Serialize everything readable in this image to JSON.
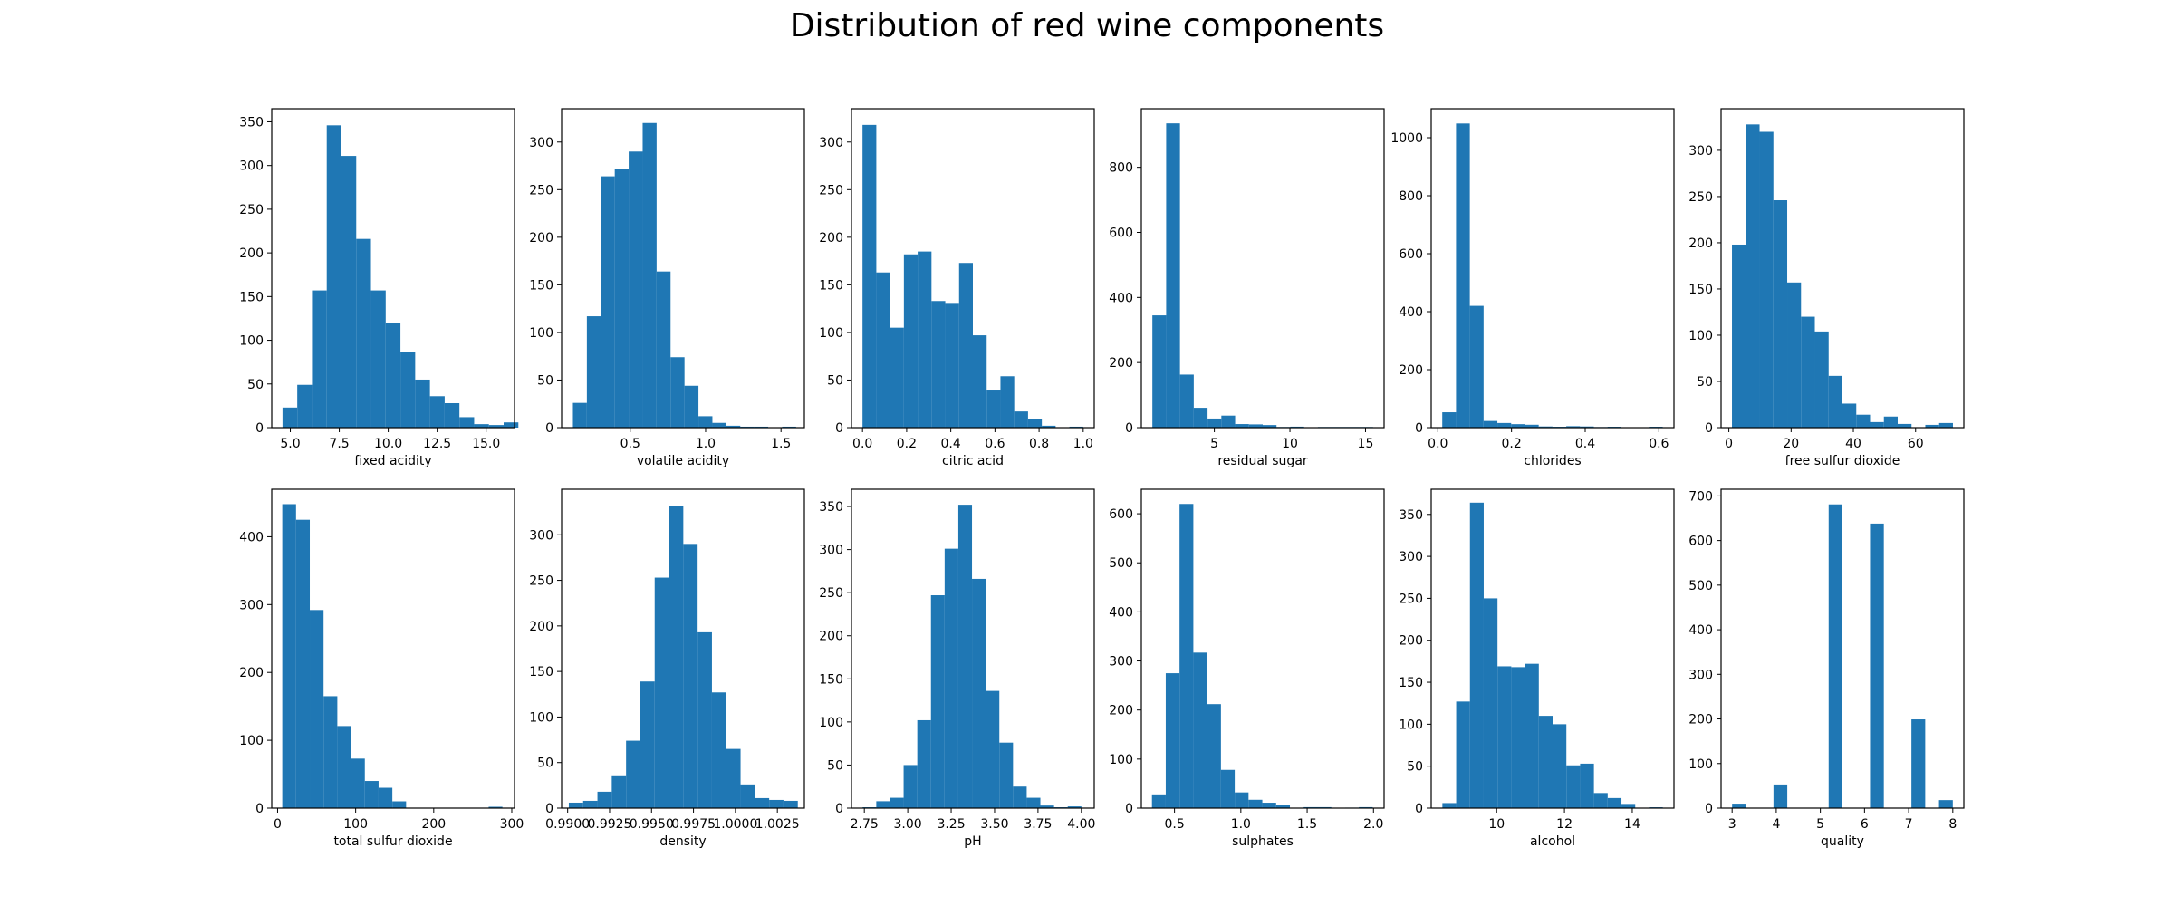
{
  "title": "Distribution of red wine components",
  "colors": {
    "bar": "#1f77b4",
    "axis": "#000000"
  },
  "chart_data": [
    {
      "type": "bar",
      "xlabel": "fixed acidity",
      "xlim": [
        4.05,
        16.45
      ],
      "ylim": [
        0,
        365
      ],
      "xticks": [
        {
          "v": 5,
          "t": "5.0"
        },
        {
          "v": 7.5,
          "t": "7.5"
        },
        {
          "v": 10,
          "t": "10.0"
        },
        {
          "v": 12.5,
          "t": "12.5"
        },
        {
          "v": 15,
          "t": "15.0"
        }
      ],
      "yticks": [
        {
          "v": 0,
          "t": "0"
        },
        {
          "v": 50,
          "t": "50"
        },
        {
          "v": 100,
          "t": "100"
        },
        {
          "v": 150,
          "t": "150"
        },
        {
          "v": 200,
          "t": "200"
        },
        {
          "v": 250,
          "t": "250"
        },
        {
          "v": 300,
          "t": "300"
        },
        {
          "v": 350,
          "t": "350"
        }
      ],
      "bin_start": 4.6,
      "bin_width": 0.753,
      "values": [
        23,
        49,
        157,
        346,
        311,
        216,
        157,
        120,
        87,
        55,
        36,
        28,
        12,
        4,
        3,
        6
      ]
    },
    {
      "type": "bar",
      "xlabel": "volatile acidity",
      "xlim": [
        0.045,
        1.655
      ],
      "ylim": [
        0,
        335
      ],
      "xticks": [
        {
          "v": 0.5,
          "t": "0.5"
        },
        {
          "v": 1.0,
          "t": "1.0"
        },
        {
          "v": 1.5,
          "t": "1.5"
        }
      ],
      "yticks": [
        {
          "v": 0,
          "t": "0"
        },
        {
          "v": 50,
          "t": "50"
        },
        {
          "v": 100,
          "t": "100"
        },
        {
          "v": 150,
          "t": "150"
        },
        {
          "v": 200,
          "t": "200"
        },
        {
          "v": 250,
          "t": "250"
        },
        {
          "v": 300,
          "t": "300"
        }
      ],
      "bin_start": 0.12,
      "bin_width": 0.0925,
      "values": [
        26,
        117,
        264,
        272,
        290,
        320,
        164,
        74,
        44,
        12,
        5,
        2,
        1,
        1,
        0,
        1
      ]
    },
    {
      "type": "bar",
      "xlabel": "citric acid",
      "xlim": [
        -0.05,
        1.05
      ],
      "ylim": [
        0,
        335
      ],
      "xticks": [
        {
          "v": 0.0,
          "t": "0.0"
        },
        {
          "v": 0.2,
          "t": "0.2"
        },
        {
          "v": 0.4,
          "t": "0.4"
        },
        {
          "v": 0.6,
          "t": "0.6"
        },
        {
          "v": 0.8,
          "t": "0.8"
        },
        {
          "v": 1.0,
          "t": "1.0"
        }
      ],
      "yticks": [
        {
          "v": 0,
          "t": "0"
        },
        {
          "v": 50,
          "t": "50"
        },
        {
          "v": 100,
          "t": "100"
        },
        {
          "v": 150,
          "t": "150"
        },
        {
          "v": 200,
          "t": "200"
        },
        {
          "v": 250,
          "t": "250"
        },
        {
          "v": 300,
          "t": "300"
        }
      ],
      "bin_start": 0.0,
      "bin_width": 0.0625,
      "values": [
        318,
        163,
        105,
        182,
        185,
        133,
        131,
        173,
        97,
        39,
        54,
        17,
        9,
        2,
        0,
        1
      ]
    },
    {
      "type": "bar",
      "xlabel": "residual sugar",
      "xlim": [
        0.17,
        16.23
      ],
      "ylim": [
        0,
        980
      ],
      "xticks": [
        {
          "v": 5,
          "t": "5"
        },
        {
          "v": 10,
          "t": "10"
        },
        {
          "v": 15,
          "t": "15"
        }
      ],
      "yticks": [
        {
          "v": 0,
          "t": "0"
        },
        {
          "v": 200,
          "t": "200"
        },
        {
          "v": 400,
          "t": "400"
        },
        {
          "v": 600,
          "t": "600"
        },
        {
          "v": 800,
          "t": "800"
        }
      ],
      "bin_start": 0.9,
      "bin_width": 0.9125,
      "values": [
        345,
        935,
        163,
        61,
        28,
        37,
        11,
        10,
        8,
        2,
        3,
        0,
        2,
        2,
        2,
        2
      ]
    },
    {
      "type": "bar",
      "xlabel": "chlorides",
      "xlim": [
        -0.018,
        0.641
      ],
      "ylim": [
        0,
        1100
      ],
      "xticks": [
        {
          "v": 0.0,
          "t": "0.0"
        },
        {
          "v": 0.2,
          "t": "0.2"
        },
        {
          "v": 0.4,
          "t": "0.4"
        },
        {
          "v": 0.6,
          "t": "0.6"
        }
      ],
      "yticks": [
        {
          "v": 0,
          "t": "0"
        },
        {
          "v": 200,
          "t": "200"
        },
        {
          "v": 400,
          "t": "400"
        },
        {
          "v": 600,
          "t": "600"
        },
        {
          "v": 800,
          "t": "800"
        },
        {
          "v": 1000,
          "t": "1000"
        }
      ],
      "bin_start": 0.012,
      "bin_width": 0.0374,
      "values": [
        53,
        1049,
        420,
        23,
        16,
        12,
        10,
        4,
        3,
        5,
        4,
        2,
        3,
        0,
        0,
        3
      ]
    },
    {
      "type": "bar",
      "xlabel": "free sulfur dioxide",
      "xlim": [
        -2.5,
        75.5
      ],
      "ylim": [
        0,
        345
      ],
      "xticks": [
        {
          "v": 0,
          "t": "0"
        },
        {
          "v": 20,
          "t": "20"
        },
        {
          "v": 40,
          "t": "40"
        },
        {
          "v": 60,
          "t": "60"
        }
      ],
      "yticks": [
        {
          "v": 0,
          "t": "0"
        },
        {
          "v": 50,
          "t": "50"
        },
        {
          "v": 100,
          "t": "100"
        },
        {
          "v": 150,
          "t": "150"
        },
        {
          "v": 200,
          "t": "200"
        },
        {
          "v": 250,
          "t": "250"
        },
        {
          "v": 300,
          "t": "300"
        }
      ],
      "bin_start": 1,
      "bin_width": 4.4375,
      "values": [
        198,
        328,
        320,
        246,
        157,
        120,
        104,
        56,
        26,
        14,
        6,
        12,
        4,
        0,
        3,
        5
      ]
    },
    {
      "type": "bar",
      "xlabel": "total sulfur dioxide",
      "xlim": [
        -7.5,
        303.5
      ],
      "ylim": [
        0,
        470
      ],
      "xticks": [
        {
          "v": 0,
          "t": "0"
        },
        {
          "v": 100,
          "t": "100"
        },
        {
          "v": 200,
          "t": "200"
        },
        {
          "v": 300,
          "t": "300"
        }
      ],
      "yticks": [
        {
          "v": 0,
          "t": "0"
        },
        {
          "v": 100,
          "t": "100"
        },
        {
          "v": 200,
          "t": "200"
        },
        {
          "v": 300,
          "t": "300"
        },
        {
          "v": 400,
          "t": "400"
        }
      ],
      "bin_start": 6,
      "bin_width": 17.625,
      "values": [
        448,
        425,
        292,
        165,
        121,
        73,
        40,
        30,
        10,
        0,
        0,
        0,
        0,
        0,
        0,
        2
      ]
    },
    {
      "type": "bar",
      "xlabel": "density",
      "xlim": [
        0.98964,
        1.00411
      ],
      "ylim": [
        0,
        350
      ],
      "xticks": [
        {
          "v": 0.99,
          "t": "0.9900"
        },
        {
          "v": 0.9925,
          "t": "0.9925"
        },
        {
          "v": 0.995,
          "t": "0.9950"
        },
        {
          "v": 0.9975,
          "t": "0.9975"
        },
        {
          "v": 1.0,
          "t": "1.0000"
        },
        {
          "v": 1.0025,
          "t": "1.0025"
        }
      ],
      "yticks": [
        {
          "v": 0,
          "t": "0"
        },
        {
          "v": 50,
          "t": "50"
        },
        {
          "v": 100,
          "t": "100"
        },
        {
          "v": 150,
          "t": "150"
        },
        {
          "v": 200,
          "t": "200"
        },
        {
          "v": 250,
          "t": "250"
        },
        {
          "v": 300,
          "t": "300"
        }
      ],
      "bin_start": 0.99007,
      "bin_width": 0.000853,
      "values": [
        6,
        8,
        18,
        36,
        74,
        139,
        253,
        332,
        290,
        193,
        127,
        65,
        26,
        11,
        9,
        8
      ]
    },
    {
      "type": "bar",
      "xlabel": "pH",
      "xlim": [
        2.676,
        4.074
      ],
      "ylim": [
        0,
        370
      ],
      "xticks": [
        {
          "v": 2.75,
          "t": "2.75"
        },
        {
          "v": 3.0,
          "t": "3.00"
        },
        {
          "v": 3.25,
          "t": "3.25"
        },
        {
          "v": 3.5,
          "t": "3.50"
        },
        {
          "v": 3.75,
          "t": "3.75"
        },
        {
          "v": 4.0,
          "t": "4.00"
        }
      ],
      "yticks": [
        {
          "v": 0,
          "t": "0"
        },
        {
          "v": 50,
          "t": "50"
        },
        {
          "v": 100,
          "t": "100"
        },
        {
          "v": 150,
          "t": "150"
        },
        {
          "v": 200,
          "t": "200"
        },
        {
          "v": 250,
          "t": "250"
        },
        {
          "v": 300,
          "t": "300"
        },
        {
          "v": 350,
          "t": "350"
        }
      ],
      "bin_start": 2.74,
      "bin_width": 0.07875,
      "values": [
        1,
        8,
        12,
        50,
        102,
        247,
        301,
        352,
        266,
        136,
        76,
        25,
        12,
        3,
        1,
        2
      ]
    },
    {
      "type": "bar",
      "xlabel": "sulphates",
      "xlim": [
        0.25,
        2.08
      ],
      "ylim": [
        0,
        650
      ],
      "xticks": [
        {
          "v": 0.5,
          "t": "0.5"
        },
        {
          "v": 1.0,
          "t": "1.0"
        },
        {
          "v": 1.5,
          "t": "1.5"
        },
        {
          "v": 2.0,
          "t": "2.0"
        }
      ],
      "yticks": [
        {
          "v": 0,
          "t": "0"
        },
        {
          "v": 100,
          "t": "100"
        },
        {
          "v": 200,
          "t": "200"
        },
        {
          "v": 300,
          "t": "300"
        },
        {
          "v": 400,
          "t": "400"
        },
        {
          "v": 500,
          "t": "500"
        },
        {
          "v": 600,
          "t": "600"
        }
      ],
      "bin_start": 0.33,
      "bin_width": 0.104,
      "values": [
        28,
        275,
        620,
        317,
        212,
        78,
        32,
        17,
        11,
        6,
        0,
        2,
        2,
        0,
        1,
        2
      ]
    },
    {
      "type": "bar",
      "xlabel": "alcohol",
      "xlim": [
        8.07,
        15.23
      ],
      "ylim": [
        0,
        380
      ],
      "xticks": [
        {
          "v": 10,
          "t": "10"
        },
        {
          "v": 12,
          "t": "12"
        },
        {
          "v": 14,
          "t": "14"
        }
      ],
      "yticks": [
        {
          "v": 0,
          "t": "0"
        },
        {
          "v": 50,
          "t": "50"
        },
        {
          "v": 100,
          "t": "100"
        },
        {
          "v": 150,
          "t": "150"
        },
        {
          "v": 200,
          "t": "200"
        },
        {
          "v": 250,
          "t": "250"
        },
        {
          "v": 300,
          "t": "300"
        },
        {
          "v": 350,
          "t": "350"
        }
      ],
      "bin_start": 8.4,
      "bin_width": 0.40625,
      "values": [
        6,
        127,
        364,
        250,
        169,
        168,
        172,
        110,
        100,
        51,
        53,
        18,
        12,
        5,
        0,
        1
      ]
    },
    {
      "type": "bar",
      "xlabel": "quality",
      "xlim": [
        2.75,
        8.25
      ],
      "ylim": [
        0,
        715
      ],
      "xticks": [
        {
          "v": 3,
          "t": "3"
        },
        {
          "v": 4,
          "t": "4"
        },
        {
          "v": 5,
          "t": "5"
        },
        {
          "v": 6,
          "t": "6"
        },
        {
          "v": 7,
          "t": "7"
        },
        {
          "v": 8,
          "t": "8"
        }
      ],
      "yticks": [
        {
          "v": 0,
          "t": "0"
        },
        {
          "v": 100,
          "t": "100"
        },
        {
          "v": 200,
          "t": "200"
        },
        {
          "v": 300,
          "t": "300"
        },
        {
          "v": 400,
          "t": "400"
        },
        {
          "v": 500,
          "t": "500"
        },
        {
          "v": 600,
          "t": "600"
        },
        {
          "v": 700,
          "t": "700"
        }
      ],
      "bin_start": 3,
      "bin_width": 0.3125,
      "values": [
        10,
        0,
        0,
        53,
        0,
        0,
        0,
        681,
        0,
        0,
        638,
        0,
        0,
        199,
        0,
        18
      ]
    }
  ]
}
